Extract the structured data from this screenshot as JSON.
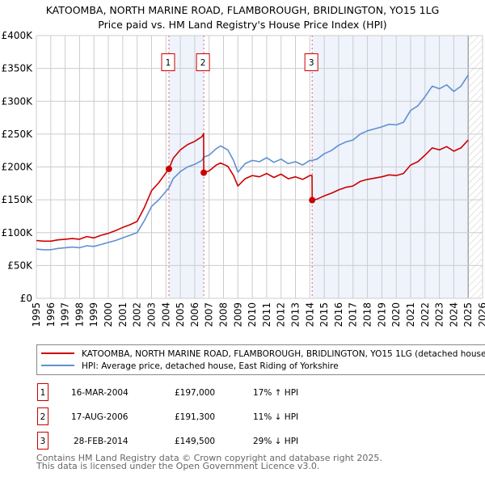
{
  "title": "KATOOMBA, NORTH MARINE ROAD, FLAMBOROUGH, BRIDLINGTON, YO15 1LG",
  "subtitle": "Price paid vs. HM Land Registry's House Price Index (HPI)",
  "colors": {
    "property": "#cc0000",
    "hpi": "#6090d0",
    "shade": "#eef3fc",
    "grid": "#cccccc",
    "marker": "#cc0000"
  },
  "chart_data": {
    "type": "line",
    "title": "KATOOMBA, NORTH MARINE ROAD, FLAMBOROUGH, BRIDLINGTON, YO15 1LG",
    "subtitle": "Price paid vs. HM Land Registry's House Price Index (HPI)",
    "xlabel": "",
    "ylabel": "",
    "xlim": [
      1995,
      2026
    ],
    "ylim": [
      0,
      400000
    ],
    "x_ticks": [
      "1995",
      "1996",
      "1997",
      "1998",
      "1999",
      "2000",
      "2001",
      "2002",
      "2003",
      "2004",
      "2005",
      "2006",
      "2007",
      "2008",
      "2009",
      "2010",
      "2011",
      "2012",
      "2013",
      "2014",
      "2015",
      "2016",
      "2017",
      "2018",
      "2019",
      "2020",
      "2021",
      "2022",
      "2023",
      "2024",
      "2025",
      "2026"
    ],
    "y_ticks": [
      {
        "v": 0,
        "label": "£0"
      },
      {
        "v": 50000,
        "label": "£50K"
      },
      {
        "v": 100000,
        "label": "£100K"
      },
      {
        "v": 150000,
        "label": "£150K"
      },
      {
        "v": 200000,
        "label": "£200K"
      },
      {
        "v": 250000,
        "label": "£250K"
      },
      {
        "v": 300000,
        "label": "£300K"
      },
      {
        "v": 350000,
        "label": "£350K"
      },
      {
        "v": 400000,
        "label": "£400K"
      }
    ],
    "grid": true,
    "legend_placement": "below",
    "projection_hatch_from": 2025.0,
    "series": [
      {
        "name": "KATOOMBA, NORTH MARINE ROAD, FLAMBOROUGH, BRIDLINGTON, YO15 1LG (detached house)",
        "color": "#cc0000",
        "points": [
          [
            1995.0,
            88
          ],
          [
            1995.5,
            87
          ],
          [
            1996.0,
            87
          ],
          [
            1996.5,
            89
          ],
          [
            1997.0,
            90
          ],
          [
            1997.5,
            91
          ],
          [
            1998.0,
            90
          ],
          [
            1998.5,
            94
          ],
          [
            1999.0,
            92
          ],
          [
            1999.5,
            96
          ],
          [
            2000.0,
            99
          ],
          [
            2000.5,
            103
          ],
          [
            2001.0,
            108
          ],
          [
            2001.5,
            112
          ],
          [
            2002.0,
            117
          ],
          [
            2002.5,
            138
          ],
          [
            2003.0,
            164
          ],
          [
            2003.5,
            176
          ],
          [
            2004.0,
            191
          ],
          [
            2004.21,
            197
          ],
          [
            2004.5,
            213
          ],
          [
            2005.0,
            226
          ],
          [
            2005.5,
            234
          ],
          [
            2006.0,
            239
          ],
          [
            2006.5,
            246
          ],
          [
            2006.62,
            251
          ],
          [
            2006.63,
            191.3
          ],
          [
            2007.0,
            194
          ],
          [
            2007.5,
            203
          ],
          [
            2007.8,
            206
          ],
          [
            2008.3,
            201
          ],
          [
            2008.7,
            187
          ],
          [
            2009.0,
            171
          ],
          [
            2009.5,
            182
          ],
          [
            2010.0,
            187
          ],
          [
            2010.5,
            185
          ],
          [
            2011.0,
            190
          ],
          [
            2011.5,
            184
          ],
          [
            2012.0,
            189
          ],
          [
            2012.5,
            182
          ],
          [
            2013.0,
            185
          ],
          [
            2013.5,
            181
          ],
          [
            2014.0,
            187
          ],
          [
            2014.15,
            187
          ],
          [
            2014.16,
            149.5
          ],
          [
            2014.5,
            151
          ],
          [
            2015.0,
            156
          ],
          [
            2015.5,
            160
          ],
          [
            2016.0,
            165
          ],
          [
            2016.5,
            169
          ],
          [
            2017.0,
            171
          ],
          [
            2017.5,
            178
          ],
          [
            2018.0,
            181
          ],
          [
            2018.5,
            183
          ],
          [
            2019.0,
            185
          ],
          [
            2019.5,
            188
          ],
          [
            2020.0,
            187
          ],
          [
            2020.5,
            190
          ],
          [
            2021.0,
            203
          ],
          [
            2021.5,
            208
          ],
          [
            2022.0,
            218
          ],
          [
            2022.5,
            229
          ],
          [
            2023.0,
            226
          ],
          [
            2023.5,
            231
          ],
          [
            2024.0,
            224
          ],
          [
            2024.5,
            229
          ],
          [
            2025.0,
            241
          ]
        ]
      },
      {
        "name": "HPI: Average price, detached house, East Riding of Yorkshire",
        "color": "#6090d0",
        "points": [
          [
            1995.0,
            75
          ],
          [
            1995.5,
            74
          ],
          [
            1996.0,
            74
          ],
          [
            1996.5,
            76
          ],
          [
            1997.0,
            77
          ],
          [
            1997.5,
            78
          ],
          [
            1998.0,
            77
          ],
          [
            1998.5,
            80
          ],
          [
            1999.0,
            79
          ],
          [
            1999.5,
            82
          ],
          [
            2000.0,
            85
          ],
          [
            2000.5,
            88
          ],
          [
            2001.0,
            92
          ],
          [
            2001.5,
            96
          ],
          [
            2002.0,
            100
          ],
          [
            2002.5,
            118
          ],
          [
            2003.0,
            140
          ],
          [
            2003.5,
            150
          ],
          [
            2004.0,
            163
          ],
          [
            2004.21,
            168
          ],
          [
            2004.5,
            182
          ],
          [
            2005.0,
            193
          ],
          [
            2005.5,
            200
          ],
          [
            2006.0,
            204
          ],
          [
            2006.5,
            210
          ],
          [
            2006.63,
            215
          ],
          [
            2007.0,
            218
          ],
          [
            2007.5,
            228
          ],
          [
            2007.8,
            232
          ],
          [
            2008.3,
            226
          ],
          [
            2008.7,
            210
          ],
          [
            2009.0,
            192
          ],
          [
            2009.5,
            205
          ],
          [
            2010.0,
            210
          ],
          [
            2010.5,
            208
          ],
          [
            2011.0,
            214
          ],
          [
            2011.5,
            207
          ],
          [
            2012.0,
            212
          ],
          [
            2012.5,
            205
          ],
          [
            2013.0,
            208
          ],
          [
            2013.5,
            203
          ],
          [
            2014.0,
            210
          ],
          [
            2014.16,
            210
          ],
          [
            2014.5,
            212
          ],
          [
            2015.0,
            220
          ],
          [
            2015.5,
            225
          ],
          [
            2016.0,
            233
          ],
          [
            2016.5,
            238
          ],
          [
            2017.0,
            241
          ],
          [
            2017.5,
            250
          ],
          [
            2018.0,
            255
          ],
          [
            2018.5,
            258
          ],
          [
            2019.0,
            261
          ],
          [
            2019.5,
            265
          ],
          [
            2020.0,
            264
          ],
          [
            2020.5,
            268
          ],
          [
            2021.0,
            286
          ],
          [
            2021.5,
            293
          ],
          [
            2022.0,
            307
          ],
          [
            2022.5,
            323
          ],
          [
            2023.0,
            319
          ],
          [
            2023.5,
            325
          ],
          [
            2024.0,
            315
          ],
          [
            2024.5,
            323
          ],
          [
            2025.0,
            340
          ]
        ]
      }
    ],
    "point_units": "thousands GBP",
    "sales": [
      {
        "id": "1",
        "x": 2004.21,
        "value": 197
      },
      {
        "id": "2",
        "x": 2006.63,
        "value": 191.3
      },
      {
        "id": "3",
        "x": 2014.16,
        "value": 149.5
      }
    ]
  },
  "legend": {
    "property_label": "KATOOMBA, NORTH MARINE ROAD, FLAMBOROUGH, BRIDLINGTON, YO15 1LG (detached house)",
    "hpi_label": "HPI: Average price, detached house, East Riding of Yorkshire"
  },
  "transactions": [
    {
      "num": "1",
      "date": "16-MAR-2004",
      "price": "£197,000",
      "hpi": "17% ↑ HPI"
    },
    {
      "num": "2",
      "date": "17-AUG-2006",
      "price": "£191,300",
      "hpi": "11% ↓ HPI"
    },
    {
      "num": "3",
      "date": "28-FEB-2014",
      "price": "£149,500",
      "hpi": "29% ↓ HPI"
    }
  ],
  "footer": {
    "line1": "Contains HM Land Registry data © Crown copyright and database right 2025.",
    "line2": "This data is licensed under the Open Government Licence v3.0."
  }
}
